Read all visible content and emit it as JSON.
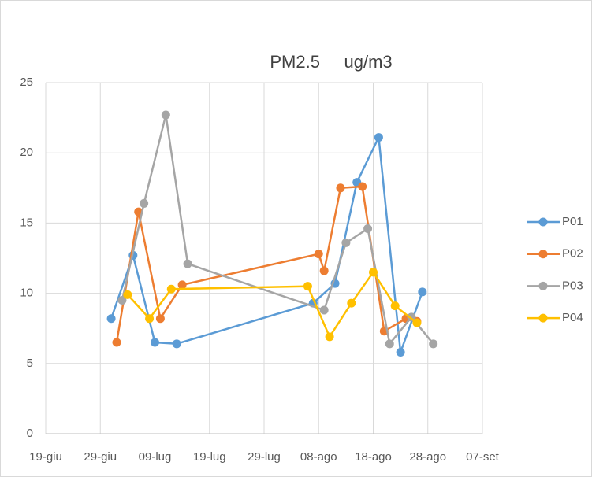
{
  "chart_data": {
    "type": "line",
    "title": "PM2.5     ug/m3",
    "xlim": [
      "19-giu",
      "07-set"
    ],
    "xticks": [
      "19-giu",
      "29-giu",
      "09-lug",
      "19-lug",
      "29-lug",
      "08-ago",
      "18-ago",
      "28-ago",
      "07-set"
    ],
    "ylim": [
      0,
      25
    ],
    "yticks": [
      0,
      5,
      10,
      15,
      20,
      25
    ],
    "grid": true,
    "legend": "right",
    "series": [
      {
        "name": "P01",
        "color": "#5b9bd5",
        "x": [
          "01-lug",
          "05-lug",
          "09-lug",
          "13-lug",
          "07-ago",
          "11-ago",
          "15-ago",
          "19-ago",
          "23-ago",
          "27-ago"
        ],
        "values": [
          8.2,
          12.7,
          6.5,
          6.4,
          9.3,
          10.7,
          17.9,
          21.1,
          5.8,
          10.1
        ]
      },
      {
        "name": "P02",
        "color": "#ed7d31",
        "x": [
          "02-lug",
          "06-lug",
          "10-lug",
          "14-lug",
          "08-ago",
          "09-ago",
          "12-ago",
          "16-ago",
          "20-ago",
          "24-ago",
          "26-ago"
        ],
        "values": [
          6.5,
          15.8,
          8.2,
          10.6,
          12.8,
          11.6,
          17.5,
          17.6,
          7.3,
          8.2,
          8.0
        ]
      },
      {
        "name": "P03",
        "color": "#a5a5a5",
        "x": [
          "03-lug",
          "07-lug",
          "11-lug",
          "15-lug",
          "09-ago",
          "13-ago",
          "17-ago",
          "21-ago",
          "25-ago",
          "29-ago"
        ],
        "values": [
          9.5,
          16.4,
          22.7,
          12.1,
          8.8,
          13.6,
          14.6,
          6.4,
          8.3,
          6.4
        ]
      },
      {
        "name": "P04",
        "color": "#ffc000",
        "x": [
          "04-lug",
          "08-lug",
          "12-lug",
          "06-ago",
          "10-ago",
          "14-ago",
          "18-ago",
          "22-ago",
          "26-ago"
        ],
        "values": [
          9.9,
          8.2,
          10.3,
          10.5,
          6.9,
          9.3,
          11.5,
          9.1,
          7.9
        ]
      }
    ]
  }
}
